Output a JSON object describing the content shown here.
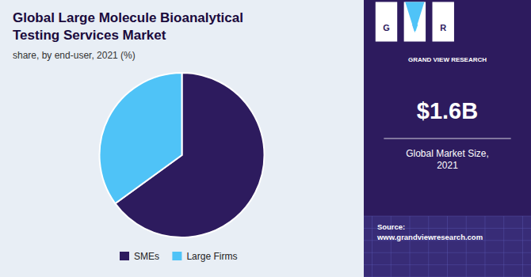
{
  "chart_data": {
    "type": "pie",
    "title": "Global Large Molecule Bioanalytical\nTesting Services Market",
    "subtitle": "share, by end-user, 2021 (%)",
    "categories": [
      "SMEs",
      "Large Firms"
    ],
    "values": [
      65,
      35
    ],
    "colors": [
      "#2d1b5e",
      "#4fc3f7"
    ],
    "legend": "bottom",
    "annotations": [
      "G",
      "V",
      "R",
      "GRAND VIEW RESEARCH",
      "$1.6B",
      "Global Market Size,\n2021",
      "Source:\nwww.grandviewresearch.com"
    ]
  }
}
